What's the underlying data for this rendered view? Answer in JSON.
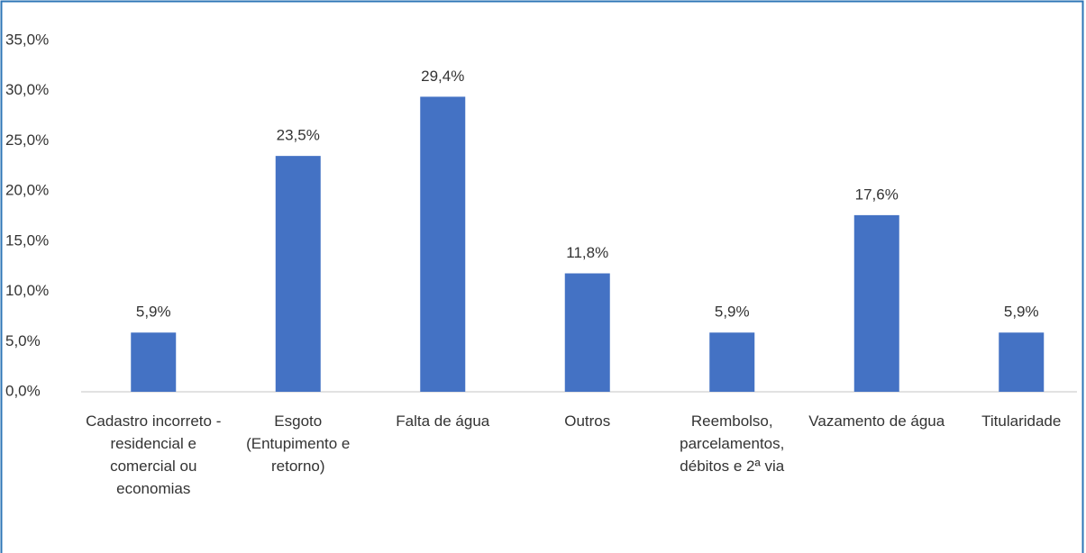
{
  "chart_data": {
    "type": "bar",
    "categories": [
      "Cadastro incorreto - residencial e comercial ou economias",
      "Esgoto (Entupimento e retorno)",
      "Falta de água",
      "Outros",
      "Reembolso, parcelamentos, débitos e 2ª via",
      "Vazamento de água",
      "Titularidade"
    ],
    "values": [
      5.9,
      23.5,
      29.4,
      11.8,
      5.9,
      17.6,
      5.9
    ],
    "value_labels": [
      "5,9%",
      "23,5%",
      "29,4%",
      "11,8%",
      "5,9%",
      "17,6%",
      "5,9%"
    ],
    "color": "#4472c4",
    "ylim": [
      0,
      35
    ],
    "yticks": [
      {
        "value": 0,
        "label": "0,0%"
      },
      {
        "value": 5,
        "label": "5,0%"
      },
      {
        "value": 10,
        "label": "10,0%"
      },
      {
        "value": 15,
        "label": "15,0%"
      },
      {
        "value": 20,
        "label": "20,0%"
      },
      {
        "value": 25,
        "label": "25,0%"
      },
      {
        "value": 30,
        "label": "30,0%"
      },
      {
        "value": 35,
        "label": "35,0%"
      }
    ],
    "grid": false
  }
}
